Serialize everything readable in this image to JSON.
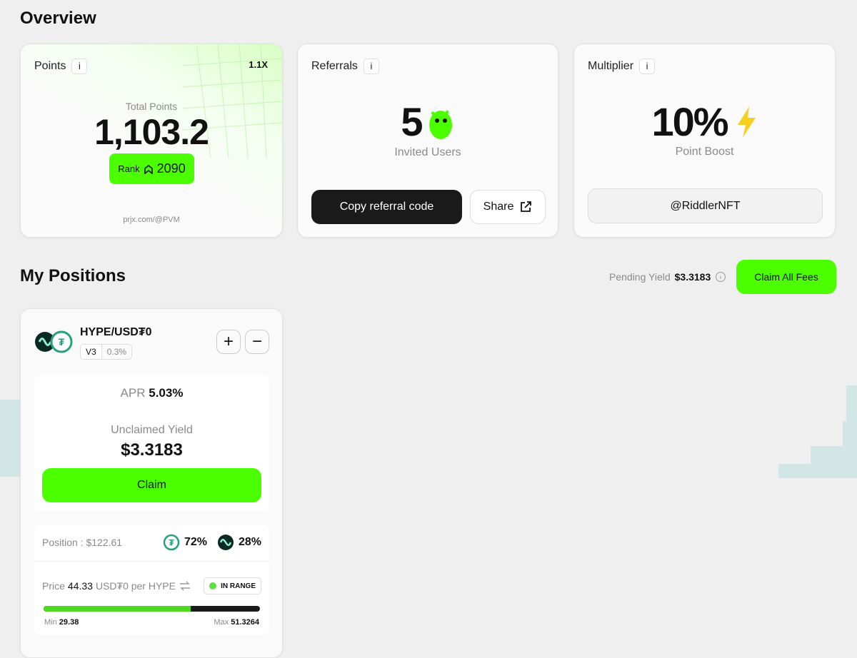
{
  "overview": {
    "title": "Overview",
    "points": {
      "label": "Points",
      "info": "i",
      "multiplier": "1.1X",
      "total_label": "Total Points",
      "total": "1,103.2",
      "rank_label": "Rank",
      "rank": "2090",
      "link": "prjx.com/@PVM"
    },
    "referrals": {
      "label": "Referrals",
      "info": "i",
      "count": "5",
      "count_label": "Invited Users",
      "copy_button": "Copy referral code",
      "share_button": "Share"
    },
    "multiplier": {
      "label": "Multiplier",
      "info": "i",
      "boost": "10%",
      "boost_label": "Point Boost",
      "handle": "@RiddlerNFT"
    }
  },
  "positions": {
    "title": "My Positions",
    "pending_label": "Pending Yield",
    "pending": "$3.3183",
    "claim_all": "Claim All Fees",
    "items": [
      {
        "pair": "HYPE/USD₮0",
        "version": "V3",
        "fee": "0.3%",
        "apr_label": "APR",
        "apr": "5.03%",
        "unclaimed_label": "Unclaimed Yield",
        "unclaimed": "$3.3183",
        "claim": "Claim",
        "position_label": "Position : $122.61",
        "share_a": "72%",
        "share_b": "28%",
        "price_label": "Price",
        "price": "44.33",
        "price_unit": "USD₮0 per HYPE",
        "status": "IN RANGE",
        "min_label": "Min",
        "min": "29.38",
        "max_label": "Max",
        "max": "51.3264"
      }
    ]
  }
}
